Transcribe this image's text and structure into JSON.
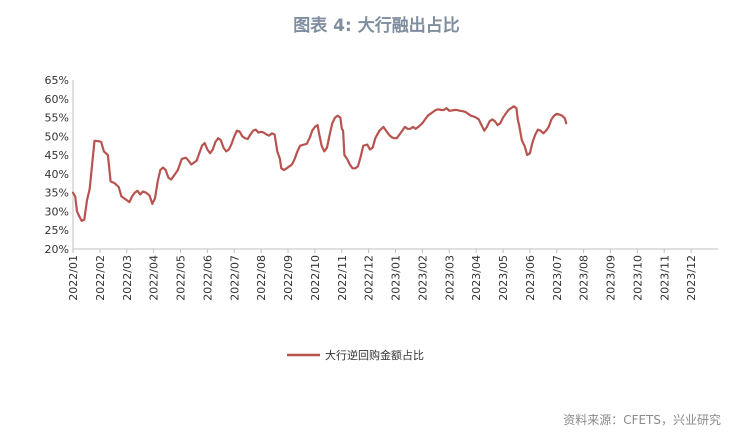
{
  "title": "图表 4:  大行融出占比",
  "source": "资料来源：CFETS，兴业研究",
  "chart_data": {
    "type": "line",
    "y_ticks": [
      "65%",
      "60%",
      "55%",
      "50%",
      "45%",
      "40%",
      "35%",
      "30%",
      "25%",
      "20%"
    ],
    "ylim": [
      20,
      65
    ],
    "x_ticks": [
      "2022/01",
      "2022/02",
      "2022/03",
      "2022/04",
      "2022/05",
      "2022/06",
      "2022/07",
      "2022/08",
      "2022/09",
      "2022/10",
      "2022/11",
      "2022/12",
      "2023/01",
      "2023/02",
      "2023/03",
      "2023/04",
      "2023/05",
      "2023/06",
      "2023/07",
      "2023/08",
      "2023/09",
      "2023/10",
      "2023/11",
      "2023/12"
    ],
    "grid": false,
    "legend_position": "bottom",
    "color": "#b85450",
    "series": [
      {
        "name": "大行逆回购金额占比",
        "points": [
          [
            0.0,
            35.0
          ],
          [
            0.08,
            34.0
          ],
          [
            0.15,
            30.0
          ],
          [
            0.25,
            28.5
          ],
          [
            0.32,
            27.5
          ],
          [
            0.42,
            27.8
          ],
          [
            0.52,
            33.0
          ],
          [
            0.62,
            36.0
          ],
          [
            0.72,
            43.0
          ],
          [
            0.8,
            48.8
          ],
          [
            0.95,
            48.7
          ],
          [
            1.05,
            48.5
          ],
          [
            1.15,
            46.0
          ],
          [
            1.3,
            45.0
          ],
          [
            1.4,
            38.0
          ],
          [
            1.55,
            37.5
          ],
          [
            1.7,
            36.5
          ],
          [
            1.8,
            34.0
          ],
          [
            2.0,
            33.0
          ],
          [
            2.1,
            32.5
          ],
          [
            2.2,
            34.0
          ],
          [
            2.3,
            35.0
          ],
          [
            2.4,
            35.5
          ],
          [
            2.5,
            34.5
          ],
          [
            2.6,
            35.3
          ],
          [
            2.72,
            35.0
          ],
          [
            2.85,
            34.2
          ],
          [
            2.95,
            32.0
          ],
          [
            3.05,
            33.5
          ],
          [
            3.15,
            38.0
          ],
          [
            3.25,
            41.0
          ],
          [
            3.35,
            41.7
          ],
          [
            3.45,
            41.0
          ],
          [
            3.55,
            39.0
          ],
          [
            3.65,
            38.5
          ],
          [
            3.75,
            39.5
          ],
          [
            3.9,
            41.0
          ],
          [
            4.05,
            44.0
          ],
          [
            4.2,
            44.3
          ],
          [
            4.3,
            43.5
          ],
          [
            4.4,
            42.5
          ],
          [
            4.5,
            43.0
          ],
          [
            4.6,
            43.5
          ],
          [
            4.7,
            45.5
          ],
          [
            4.8,
            47.5
          ],
          [
            4.9,
            48.2
          ],
          [
            5.0,
            46.5
          ],
          [
            5.1,
            45.5
          ],
          [
            5.2,
            46.5
          ],
          [
            5.3,
            48.5
          ],
          [
            5.4,
            49.5
          ],
          [
            5.5,
            49.0
          ],
          [
            5.6,
            47.0
          ],
          [
            5.7,
            46.0
          ],
          [
            5.8,
            46.5
          ],
          [
            5.9,
            48.0
          ],
          [
            6.0,
            50.0
          ],
          [
            6.1,
            51.5
          ],
          [
            6.2,
            51.3
          ],
          [
            6.3,
            50.0
          ],
          [
            6.4,
            49.5
          ],
          [
            6.5,
            49.3
          ],
          [
            6.6,
            50.5
          ],
          [
            6.7,
            51.5
          ],
          [
            6.8,
            51.8
          ],
          [
            6.9,
            51.0
          ],
          [
            7.0,
            51.2
          ],
          [
            7.1,
            51.0
          ],
          [
            7.2,
            50.5
          ],
          [
            7.3,
            50.2
          ],
          [
            7.4,
            50.8
          ],
          [
            7.5,
            50.5
          ],
          [
            7.6,
            46.0
          ],
          [
            7.7,
            44.0
          ],
          [
            7.75,
            41.5
          ],
          [
            7.85,
            41.0
          ],
          [
            7.95,
            41.5
          ],
          [
            8.05,
            42.0
          ],
          [
            8.15,
            42.5
          ],
          [
            8.25,
            44.0
          ],
          [
            8.35,
            46.0
          ],
          [
            8.45,
            47.5
          ],
          [
            8.6,
            47.8
          ],
          [
            8.7,
            48.0
          ],
          [
            8.8,
            49.5
          ],
          [
            8.9,
            51.5
          ],
          [
            9.0,
            52.5
          ],
          [
            9.1,
            53.0
          ],
          [
            9.15,
            51.0
          ],
          [
            9.25,
            47.5
          ],
          [
            9.35,
            46.0
          ],
          [
            9.45,
            47.0
          ],
          [
            9.55,
            50.5
          ],
          [
            9.65,
            53.5
          ],
          [
            9.75,
            55.0
          ],
          [
            9.85,
            55.5
          ],
          [
            9.95,
            55.0
          ],
          [
            10.0,
            52.0
          ],
          [
            10.05,
            51.5
          ],
          [
            10.1,
            45.0
          ],
          [
            10.2,
            44.0
          ],
          [
            10.3,
            42.5
          ],
          [
            10.4,
            41.5
          ],
          [
            10.5,
            41.5
          ],
          [
            10.6,
            42.0
          ],
          [
            10.7,
            44.5
          ],
          [
            10.8,
            47.5
          ],
          [
            10.95,
            47.8
          ],
          [
            11.05,
            46.5
          ],
          [
            11.15,
            47.0
          ],
          [
            11.25,
            49.5
          ],
          [
            11.4,
            51.5
          ],
          [
            11.55,
            52.5
          ],
          [
            11.65,
            51.5
          ],
          [
            11.75,
            50.5
          ],
          [
            11.85,
            49.8
          ],
          [
            11.95,
            49.5
          ],
          [
            12.05,
            49.5
          ],
          [
            12.15,
            50.5
          ],
          [
            12.25,
            51.5
          ],
          [
            12.35,
            52.5
          ],
          [
            12.45,
            52.0
          ],
          [
            12.55,
            52.0
          ],
          [
            12.65,
            52.5
          ],
          [
            12.75,
            52.0
          ],
          [
            12.85,
            52.5
          ],
          [
            13.0,
            53.5
          ],
          [
            13.1,
            54.5
          ],
          [
            13.2,
            55.5
          ],
          [
            13.3,
            56.0
          ],
          [
            13.4,
            56.5
          ],
          [
            13.5,
            57.0
          ],
          [
            13.6,
            57.2
          ],
          [
            13.7,
            57.0
          ],
          [
            13.8,
            57.0
          ],
          [
            13.9,
            57.5
          ],
          [
            14.0,
            56.8
          ],
          [
            14.1,
            56.9
          ],
          [
            14.2,
            57.0
          ],
          [
            14.3,
            57.0
          ],
          [
            14.4,
            56.8
          ],
          [
            14.5,
            56.7
          ],
          [
            14.6,
            56.5
          ],
          [
            14.7,
            56.0
          ],
          [
            14.8,
            55.5
          ],
          [
            14.9,
            55.3
          ],
          [
            15.0,
            55.0
          ],
          [
            15.1,
            54.5
          ],
          [
            15.2,
            53.0
          ],
          [
            15.3,
            51.5
          ],
          [
            15.4,
            52.5
          ],
          [
            15.5,
            54.0
          ],
          [
            15.6,
            54.5
          ],
          [
            15.7,
            54.0
          ],
          [
            15.8,
            53.0
          ],
          [
            15.9,
            53.5
          ],
          [
            16.0,
            55.0
          ],
          [
            16.1,
            56.0
          ],
          [
            16.2,
            57.0
          ],
          [
            16.3,
            57.5
          ],
          [
            16.4,
            58.0
          ],
          [
            16.5,
            57.5
          ],
          [
            16.55,
            54.5
          ],
          [
            16.6,
            53.0
          ],
          [
            16.7,
            49.0
          ],
          [
            16.8,
            47.5
          ],
          [
            16.9,
            45.0
          ],
          [
            17.0,
            45.5
          ],
          [
            17.1,
            48.5
          ],
          [
            17.2,
            50.5
          ],
          [
            17.3,
            51.8
          ],
          [
            17.4,
            51.5
          ],
          [
            17.5,
            50.8
          ],
          [
            17.6,
            51.5
          ],
          [
            17.7,
            52.5
          ],
          [
            17.8,
            54.5
          ],
          [
            17.9,
            55.5
          ],
          [
            18.0,
            56.0
          ],
          [
            18.1,
            55.8
          ],
          [
            18.2,
            55.5
          ],
          [
            18.3,
            54.8
          ],
          [
            18.35,
            53.5
          ]
        ]
      }
    ]
  }
}
